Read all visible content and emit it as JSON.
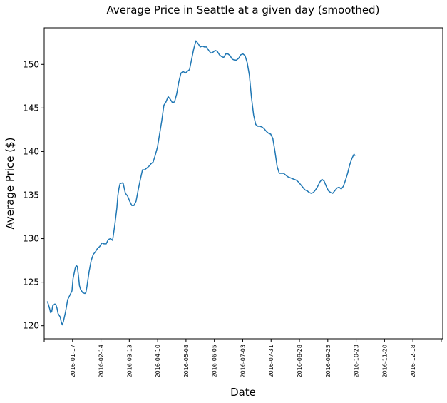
{
  "chart_data": {
    "type": "line",
    "title": "Average Price in Seattle at a given day (smoothed)",
    "xlabel": "Date",
    "ylabel": "Average Price ($)",
    "x_range": [
      "2016-01-01",
      "2017-01-08"
    ],
    "ylim": [
      118.5,
      154.2
    ],
    "grid": false,
    "legend": "none",
    "line_color": "#1f77b4",
    "xticks": [
      "",
      "2016-01-17",
      "2016-02-14",
      "2016-03-13",
      "2016-04-10",
      "2016-05-08",
      "2016-06-05",
      "2016-07-03",
      "2016-07-31",
      "2016-08-28",
      "2016-09-25",
      "2016-10-23",
      "2016-11-20",
      "2016-12-18",
      ""
    ],
    "yticks": [
      120,
      125,
      130,
      135,
      140,
      145,
      150
    ],
    "series": [
      {
        "points": [
          [
            "2016-01-04",
            122.8
          ],
          [
            "2016-01-06",
            122.0
          ],
          [
            "2016-01-07",
            121.5
          ],
          [
            "2016-01-08",
            121.6
          ],
          [
            "2016-01-09",
            122.3
          ],
          [
            "2016-01-11",
            122.5
          ],
          [
            "2016-01-12",
            122.4
          ],
          [
            "2016-01-13",
            122.0
          ],
          [
            "2016-01-14",
            121.4
          ],
          [
            "2016-01-16",
            121.0
          ],
          [
            "2016-01-17",
            120.4
          ],
          [
            "2016-01-18",
            120.1
          ],
          [
            "2016-01-19",
            120.5
          ],
          [
            "2016-01-21",
            121.6
          ],
          [
            "2016-01-23",
            123.0
          ],
          [
            "2016-01-25",
            123.5
          ],
          [
            "2016-01-27",
            124.0
          ],
          [
            "2016-01-28",
            125.4
          ],
          [
            "2016-01-30",
            126.6
          ],
          [
            "2016-01-31",
            126.9
          ],
          [
            "2016-02-01",
            126.8
          ],
          [
            "2016-02-02",
            125.8
          ],
          [
            "2016-02-03",
            124.6
          ],
          [
            "2016-02-04",
            124.2
          ],
          [
            "2016-02-06",
            123.8
          ],
          [
            "2016-02-08",
            123.7
          ],
          [
            "2016-02-09",
            123.8
          ],
          [
            "2016-02-10",
            124.5
          ],
          [
            "2016-02-12",
            126.2
          ],
          [
            "2016-02-14",
            127.5
          ],
          [
            "2016-02-16",
            128.2
          ],
          [
            "2016-02-18",
            128.5
          ],
          [
            "2016-02-20",
            128.9
          ],
          [
            "2016-02-22",
            129.1
          ],
          [
            "2016-02-24",
            129.5
          ],
          [
            "2016-02-26",
            129.4
          ],
          [
            "2016-02-28",
            129.4
          ],
          [
            "2016-03-01",
            129.9
          ],
          [
            "2016-03-03",
            130.0
          ],
          [
            "2016-03-05",
            129.8
          ],
          [
            "2016-03-07",
            131.5
          ],
          [
            "2016-03-09",
            133.5
          ],
          [
            "2016-03-10",
            135.0
          ],
          [
            "2016-03-11",
            135.8
          ],
          [
            "2016-03-12",
            136.3
          ],
          [
            "2016-03-14",
            136.4
          ],
          [
            "2016-03-15",
            136.3
          ],
          [
            "2016-03-17",
            135.2
          ],
          [
            "2016-03-19",
            134.9
          ],
          [
            "2016-03-21",
            134.3
          ],
          [
            "2016-03-23",
            133.8
          ],
          [
            "2016-03-25",
            133.8
          ],
          [
            "2016-03-27",
            134.3
          ],
          [
            "2016-03-29",
            135.6
          ],
          [
            "2016-03-31",
            136.8
          ],
          [
            "2016-04-02",
            137.9
          ],
          [
            "2016-04-04",
            137.9
          ],
          [
            "2016-04-06",
            138.1
          ],
          [
            "2016-04-08",
            138.3
          ],
          [
            "2016-04-10",
            138.6
          ],
          [
            "2016-04-12",
            138.8
          ],
          [
            "2016-04-14",
            139.6
          ],
          [
            "2016-04-16",
            140.5
          ],
          [
            "2016-04-18",
            142.0
          ],
          [
            "2016-04-20",
            143.5
          ],
          [
            "2016-04-22",
            145.3
          ],
          [
            "2016-04-24",
            145.7
          ],
          [
            "2016-04-26",
            146.3
          ],
          [
            "2016-04-28",
            146.0
          ],
          [
            "2016-04-30",
            145.6
          ],
          [
            "2016-05-02",
            145.7
          ],
          [
            "2016-05-04",
            146.6
          ],
          [
            "2016-05-06",
            148.0
          ],
          [
            "2016-05-08",
            149.0
          ],
          [
            "2016-05-10",
            149.2
          ],
          [
            "2016-05-12",
            149.0
          ],
          [
            "2016-05-14",
            149.2
          ],
          [
            "2016-05-16",
            149.4
          ],
          [
            "2016-05-18",
            150.6
          ],
          [
            "2016-05-20",
            151.8
          ],
          [
            "2016-05-22",
            152.7
          ],
          [
            "2016-05-24",
            152.4
          ],
          [
            "2016-05-26",
            152.0
          ],
          [
            "2016-05-28",
            152.1
          ],
          [
            "2016-05-30",
            152.0
          ],
          [
            "2016-06-01",
            152.0
          ],
          [
            "2016-06-03",
            151.6
          ],
          [
            "2016-06-05",
            151.3
          ],
          [
            "2016-06-07",
            151.4
          ],
          [
            "2016-06-09",
            151.6
          ],
          [
            "2016-06-11",
            151.5
          ],
          [
            "2016-06-13",
            151.1
          ],
          [
            "2016-06-15",
            150.9
          ],
          [
            "2016-06-17",
            150.8
          ],
          [
            "2016-06-19",
            151.2
          ],
          [
            "2016-06-21",
            151.2
          ],
          [
            "2016-06-23",
            151.0
          ],
          [
            "2016-06-25",
            150.6
          ],
          [
            "2016-06-27",
            150.5
          ],
          [
            "2016-06-29",
            150.5
          ],
          [
            "2016-07-01",
            150.7
          ],
          [
            "2016-07-03",
            151.1
          ],
          [
            "2016-07-05",
            151.2
          ],
          [
            "2016-07-07",
            151.0
          ],
          [
            "2016-07-09",
            150.2
          ],
          [
            "2016-07-11",
            148.8
          ],
          [
            "2016-07-13",
            146.2
          ],
          [
            "2016-07-15",
            144.2
          ],
          [
            "2016-07-17",
            143.1
          ],
          [
            "2016-07-19",
            142.9
          ],
          [
            "2016-07-21",
            142.9
          ],
          [
            "2016-07-23",
            142.8
          ],
          [
            "2016-07-25",
            142.6
          ],
          [
            "2016-07-27",
            142.3
          ],
          [
            "2016-07-29",
            142.1
          ],
          [
            "2016-07-31",
            142.0
          ],
          [
            "2016-08-02",
            141.5
          ],
          [
            "2016-08-04",
            140.0
          ],
          [
            "2016-08-06",
            138.3
          ],
          [
            "2016-08-08",
            137.5
          ],
          [
            "2016-08-10",
            137.5
          ],
          [
            "2016-08-12",
            137.5
          ],
          [
            "2016-08-14",
            137.3
          ],
          [
            "2016-08-16",
            137.1
          ],
          [
            "2016-08-18",
            137.0
          ],
          [
            "2016-08-20",
            136.9
          ],
          [
            "2016-08-22",
            136.8
          ],
          [
            "2016-08-24",
            136.7
          ],
          [
            "2016-08-26",
            136.5
          ],
          [
            "2016-08-28",
            136.2
          ],
          [
            "2016-08-30",
            135.9
          ],
          [
            "2016-09-01",
            135.6
          ],
          [
            "2016-09-03",
            135.5
          ],
          [
            "2016-09-05",
            135.3
          ],
          [
            "2016-09-07",
            135.2
          ],
          [
            "2016-09-09",
            135.3
          ],
          [
            "2016-09-11",
            135.6
          ],
          [
            "2016-09-13",
            136.0
          ],
          [
            "2016-09-15",
            136.5
          ],
          [
            "2016-09-17",
            136.8
          ],
          [
            "2016-09-19",
            136.6
          ],
          [
            "2016-09-21",
            136.0
          ],
          [
            "2016-09-23",
            135.5
          ],
          [
            "2016-09-25",
            135.3
          ],
          [
            "2016-09-27",
            135.2
          ],
          [
            "2016-09-29",
            135.5
          ],
          [
            "2016-10-01",
            135.8
          ],
          [
            "2016-10-03",
            135.9
          ],
          [
            "2016-10-05",
            135.7
          ],
          [
            "2016-10-07",
            136.0
          ],
          [
            "2016-10-09",
            136.7
          ],
          [
            "2016-10-11",
            137.5
          ],
          [
            "2016-10-13",
            138.5
          ],
          [
            "2016-10-15",
            139.2
          ],
          [
            "2016-10-17",
            139.7
          ],
          [
            "2016-10-18",
            139.5
          ]
        ]
      }
    ]
  }
}
